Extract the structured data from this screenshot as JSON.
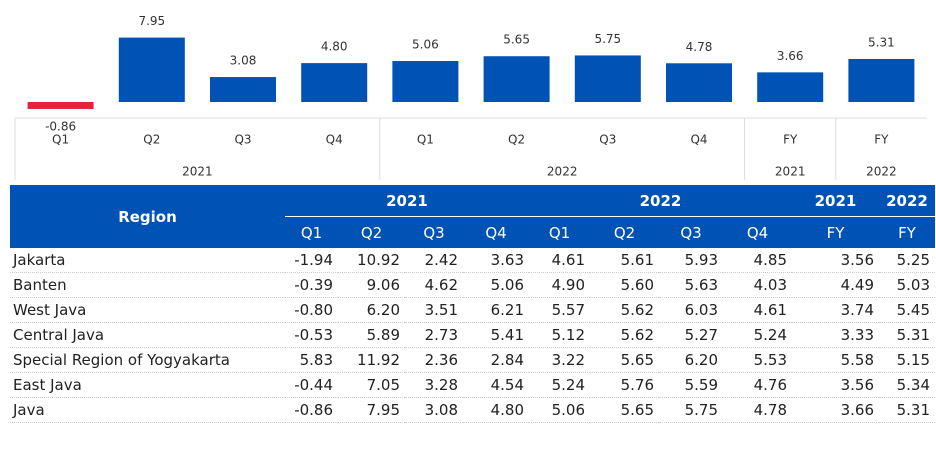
{
  "chart_data": {
    "type": "bar",
    "color": "#0052b4",
    "negative_color": "#e8213a",
    "groups": [
      {
        "label": "2021",
        "categories": [
          "Q1",
          "Q2",
          "Q3",
          "Q4"
        ]
      },
      {
        "label": "2022",
        "categories": [
          "Q1",
          "Q2",
          "Q3",
          "Q4"
        ]
      },
      {
        "label": "2021",
        "categories": [
          "FY"
        ]
      },
      {
        "label": "2022",
        "categories": [
          "FY"
        ]
      }
    ],
    "values": [
      -0.86,
      7.95,
      3.08,
      4.8,
      5.06,
      5.65,
      5.75,
      4.78,
      3.66,
      5.31
    ],
    "value_labels": [
      "-0.86",
      "7.95",
      "3.08",
      "4.80",
      "5.06",
      "5.65",
      "5.75",
      "4.78",
      "3.66",
      "5.31"
    ]
  },
  "table": {
    "header": {
      "region": "Region",
      "groups": [
        {
          "label": "2021",
          "columns": [
            "Q1",
            "Q2",
            "Q3",
            "Q4"
          ]
        },
        {
          "label": "2022",
          "columns": [
            "Q1",
            "Q2",
            "Q3",
            "Q4"
          ]
        },
        {
          "label": "2021",
          "columns": [
            "FY"
          ]
        },
        {
          "label": "2022",
          "columns": [
            "FY"
          ]
        }
      ]
    },
    "rows": [
      [
        "Jakarta",
        "-1.94",
        "10.92",
        "2.42",
        "3.63",
        "4.61",
        "5.61",
        "5.93",
        "4.85",
        "3.56",
        "5.25"
      ],
      [
        "Banten",
        "-0.39",
        "9.06",
        "4.62",
        "5.06",
        "4.90",
        "5.60",
        "5.63",
        "4.03",
        "4.49",
        "5.03"
      ],
      [
        "West Java",
        "-0.80",
        "6.20",
        "3.51",
        "6.21",
        "5.57",
        "5.62",
        "6.03",
        "4.61",
        "3.74",
        "5.45"
      ],
      [
        "Central Java",
        "-0.53",
        "5.89",
        "2.73",
        "5.41",
        "5.12",
        "5.62",
        "5.27",
        "5.24",
        "3.33",
        "5.31"
      ],
      [
        "Special Region of Yogyakarta",
        "5.83",
        "11.92",
        "2.36",
        "2.84",
        "3.22",
        "5.65",
        "6.20",
        "5.53",
        "5.58",
        "5.15"
      ],
      [
        "East Java",
        "-0.44",
        "7.05",
        "3.28",
        "4.54",
        "5.24",
        "5.76",
        "5.59",
        "4.76",
        "3.56",
        "5.34"
      ],
      [
        "Java",
        "-0.86",
        "7.95",
        "3.08",
        "4.80",
        "5.06",
        "5.65",
        "5.75",
        "4.78",
        "3.66",
        "5.31"
      ]
    ]
  }
}
